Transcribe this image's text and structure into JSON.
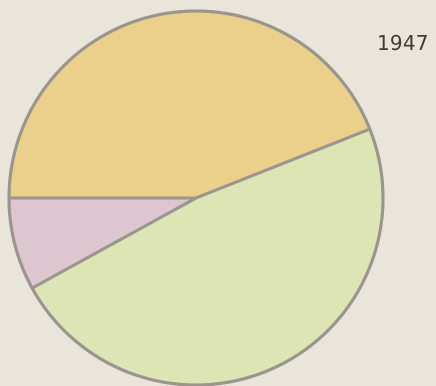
{
  "chart_data": {
    "type": "pie",
    "title": "1947",
    "slices": [
      {
        "value": 44,
        "color": "#ead08a"
      },
      {
        "value": 48,
        "color": "#dde5b5"
      },
      {
        "value": 8,
        "color": "#ddc6d0"
      }
    ],
    "stroke_color": "#9a958d",
    "legend": "none",
    "grid": false
  }
}
